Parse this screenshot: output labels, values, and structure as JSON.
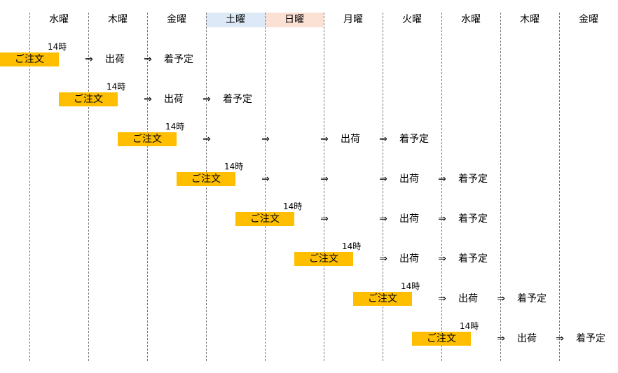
{
  "colors": {
    "saturday_bg": "#dde9f6",
    "sunday_bg": "#fbe0d4",
    "order_bg": "#ffbf00",
    "gridline": "#777777"
  },
  "day_headers": [
    {
      "label": "水曜"
    },
    {
      "label": "木曜"
    },
    {
      "label": "金曜"
    },
    {
      "label": "土曜",
      "highlight": "saturday"
    },
    {
      "label": "日曜",
      "highlight": "sunday"
    },
    {
      "label": "月曜"
    },
    {
      "label": "火曜"
    },
    {
      "label": "水曜"
    },
    {
      "label": "木曜"
    },
    {
      "label": "金曜"
    }
  ],
  "text": {
    "order": "ご注文",
    "cutoff": "14時",
    "arrow": "⇒",
    "ship": "出荷",
    "arrive": "着予定"
  },
  "scenarios": [
    {
      "order_day": 0,
      "ship_day": 1,
      "arrive_day": 2
    },
    {
      "order_day": 1,
      "ship_day": 2,
      "arrive_day": 3
    },
    {
      "order_day": 2,
      "ship_day": 5,
      "arrive_day": 6
    },
    {
      "order_day": 3,
      "ship_day": 6,
      "arrive_day": 7
    },
    {
      "order_day": 4,
      "ship_day": 6,
      "arrive_day": 7
    },
    {
      "order_day": 5,
      "ship_day": 6,
      "arrive_day": 7
    },
    {
      "order_day": 6,
      "ship_day": 7,
      "arrive_day": 8
    },
    {
      "order_day": 7,
      "ship_day": 8,
      "arrive_day": 9
    }
  ]
}
